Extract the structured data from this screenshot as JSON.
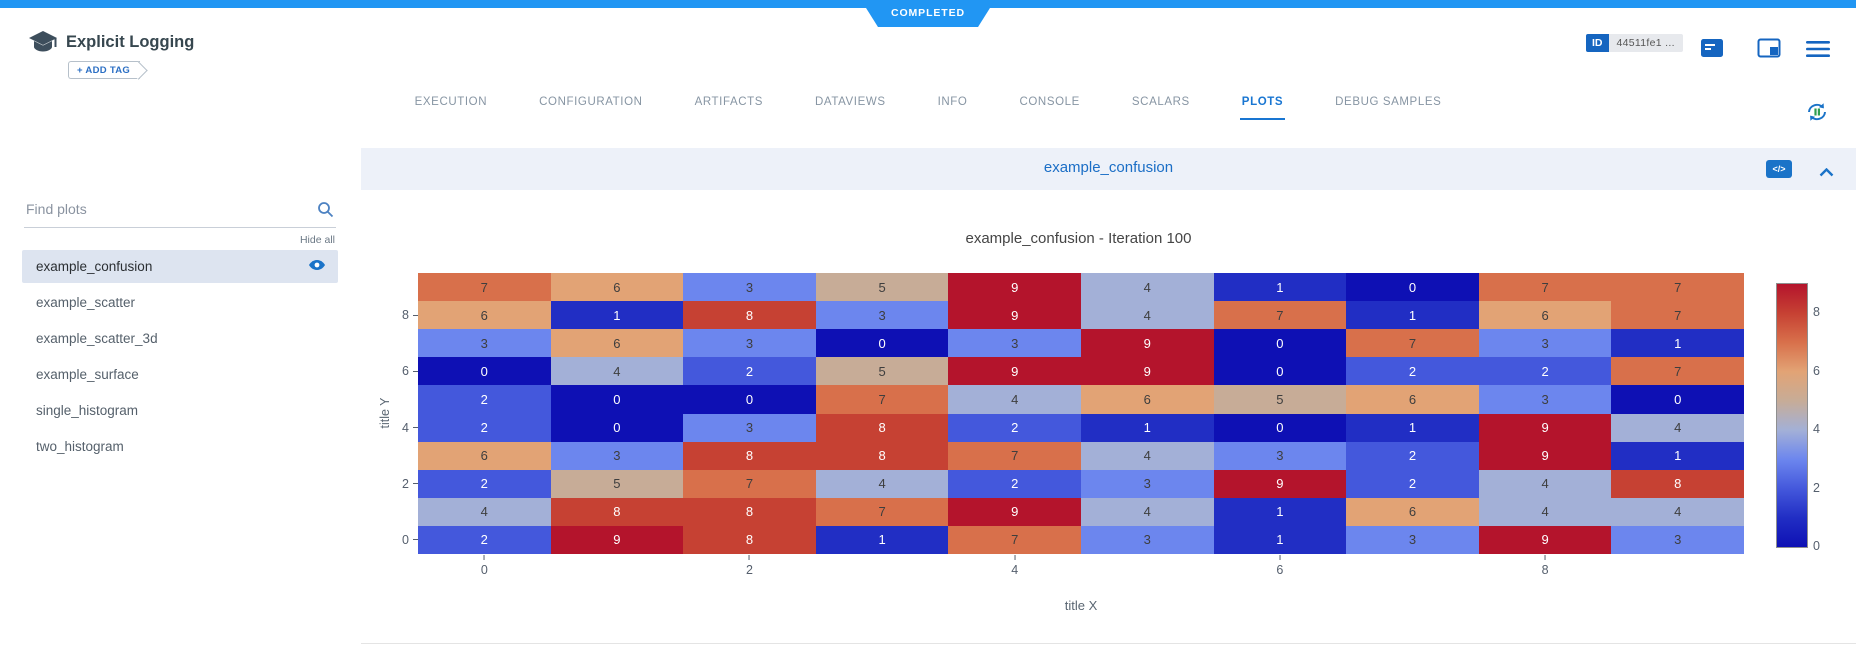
{
  "status_banner": {
    "label": "COMPLETED",
    "color": "#2196f3"
  },
  "header": {
    "app_title": "Explicit Logging",
    "add_tag_label": "+ ADD TAG",
    "id_badge": {
      "label": "ID",
      "value": "44511fe1 ..."
    }
  },
  "tabs": {
    "active": "PLOTS",
    "items": [
      {
        "label": "EXECUTION"
      },
      {
        "label": "CONFIGURATION"
      },
      {
        "label": "ARTIFACTS"
      },
      {
        "label": "DATAVIEWS"
      },
      {
        "label": "INFO"
      },
      {
        "label": "CONSOLE"
      },
      {
        "label": "SCALARS"
      },
      {
        "label": "PLOTS"
      },
      {
        "label": "DEBUG SAMPLES"
      }
    ]
  },
  "sidebar": {
    "search_placeholder": "Find plots",
    "hide_all_label": "Hide all",
    "items": [
      {
        "label": "example_confusion",
        "selected": true
      },
      {
        "label": "example_scatter",
        "selected": false
      },
      {
        "label": "example_scatter_3d",
        "selected": false
      },
      {
        "label": "example_surface",
        "selected": false
      },
      {
        "label": "single_histogram",
        "selected": false
      },
      {
        "label": "two_histogram",
        "selected": false
      }
    ]
  },
  "plot_panel": {
    "title": "example_confusion",
    "code_button_label": "</>"
  },
  "chart_data": {
    "type": "heatmap",
    "title": "example_confusion - Iteration 100",
    "xlabel": "title X",
    "ylabel": "title Y",
    "x_range": [
      0,
      9
    ],
    "y_range": [
      0,
      9
    ],
    "values_top_to_bottom": [
      [
        7,
        6,
        3,
        5,
        9,
        4,
        1,
        0,
        7,
        7
      ],
      [
        6,
        1,
        8,
        3,
        9,
        4,
        7,
        1,
        6,
        7
      ],
      [
        3,
        6,
        3,
        0,
        3,
        9,
        0,
        7,
        3,
        1
      ],
      [
        0,
        4,
        2,
        5,
        9,
        9,
        0,
        2,
        2,
        7
      ],
      [
        2,
        0,
        0,
        7,
        4,
        6,
        5,
        6,
        3,
        0
      ],
      [
        2,
        0,
        3,
        8,
        2,
        1,
        0,
        1,
        9,
        4
      ],
      [
        6,
        3,
        8,
        8,
        7,
        4,
        3,
        2,
        9,
        1
      ],
      [
        2,
        5,
        7,
        4,
        2,
        3,
        9,
        2,
        4,
        8
      ],
      [
        4,
        8,
        8,
        7,
        9,
        4,
        1,
        6,
        4,
        4
      ],
      [
        2,
        9,
        8,
        1,
        7,
        3,
        1,
        3,
        9,
        3
      ]
    ],
    "x_ticks": [
      "0",
      "2",
      "4",
      "6",
      "8"
    ],
    "y_ticks": [
      "8",
      "6",
      "4",
      "2",
      "0"
    ],
    "colorbar": {
      "min": 0,
      "max": 9,
      "ticks": [
        "8",
        "6",
        "4",
        "2",
        "0"
      ]
    },
    "value_colors": {
      "0": "#0e10b4",
      "1": "#212ec4",
      "2": "#4458dc",
      "3": "#6c86ee",
      "4": "#a3b0d7",
      "5": "#c7ac97",
      "6": "#e2a375",
      "7": "#d8704b",
      "8": "#c64133",
      "9": "#b4142c"
    },
    "light_text_values": [
      0,
      1,
      2,
      8,
      9
    ]
  }
}
